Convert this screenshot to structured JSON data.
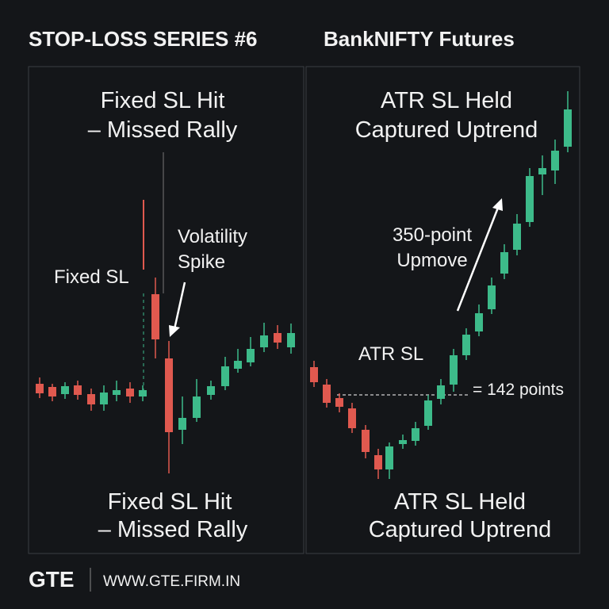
{
  "header": {
    "title": "STOP-LOSS SERIES #6",
    "subtitle": "BankNIFTY Futures"
  },
  "left_panel": {
    "heading": [
      "Fixed SL Hit",
      "– Missed Rally"
    ],
    "annotation_spike": [
      "Volatility",
      "Spike"
    ],
    "annotation_sl": "Fixed SL",
    "caption": [
      "Fixed SL Hit",
      "– Missed Rally"
    ]
  },
  "right_panel": {
    "heading": [
      "ATR SL Held",
      "Captured Uptrend"
    ],
    "annotation_move": [
      "350-point",
      "Upmove"
    ],
    "annotation_sl": "ATR SL",
    "annotation_gap": "= 142 points",
    "caption": [
      "ATR SL Held",
      "Captured Uptrend"
    ]
  },
  "footer": {
    "brand": "GTE",
    "url": "WWW.GTE.FIRM.IN"
  }
}
